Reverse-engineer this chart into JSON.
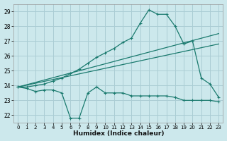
{
  "xlabel": "Humidex (Indice chaleur)",
  "bg_color": "#cce8ec",
  "grid_color": "#aacdd4",
  "line_color": "#1a7a6e",
  "xlim": [
    -0.5,
    23.5
  ],
  "ylim": [
    21.5,
    29.5
  ],
  "xticks": [
    0,
    1,
    2,
    3,
    4,
    5,
    6,
    7,
    8,
    9,
    10,
    11,
    12,
    13,
    14,
    15,
    16,
    17,
    18,
    19,
    20,
    21,
    22,
    23
  ],
  "yticks": [
    22,
    23,
    24,
    25,
    26,
    27,
    28,
    29
  ],
  "series1_x": [
    0,
    1,
    2,
    3,
    4,
    5,
    6,
    7,
    8,
    9,
    10,
    11,
    12,
    13,
    14,
    15,
    16,
    17,
    18,
    19,
    20,
    21,
    22,
    23
  ],
  "series1_y": [
    23.9,
    23.8,
    23.6,
    23.7,
    23.7,
    23.5,
    21.8,
    21.8,
    23.5,
    23.9,
    23.5,
    23.5,
    23.5,
    23.3,
    23.3,
    23.3,
    23.3,
    23.3,
    23.2,
    23.0,
    23.0,
    23.0,
    23.0,
    22.9
  ],
  "series2_x": [
    0,
    23
  ],
  "series2_y": [
    23.9,
    27.5
  ],
  "series3_x": [
    0,
    23
  ],
  "series3_y": [
    23.9,
    26.8
  ],
  "series4_x": [
    0,
    1,
    2,
    3,
    4,
    5,
    6,
    7,
    8,
    9,
    10,
    11,
    12,
    13,
    14,
    15,
    16,
    17,
    18,
    19,
    20,
    21,
    22,
    23
  ],
  "series4_y": [
    23.9,
    23.9,
    24.0,
    24.1,
    24.3,
    24.5,
    24.8,
    25.1,
    25.5,
    25.9,
    26.2,
    26.5,
    26.9,
    27.2,
    28.2,
    29.1,
    28.8,
    28.8,
    28.0,
    26.8,
    27.0,
    24.5,
    24.1,
    23.2
  ]
}
